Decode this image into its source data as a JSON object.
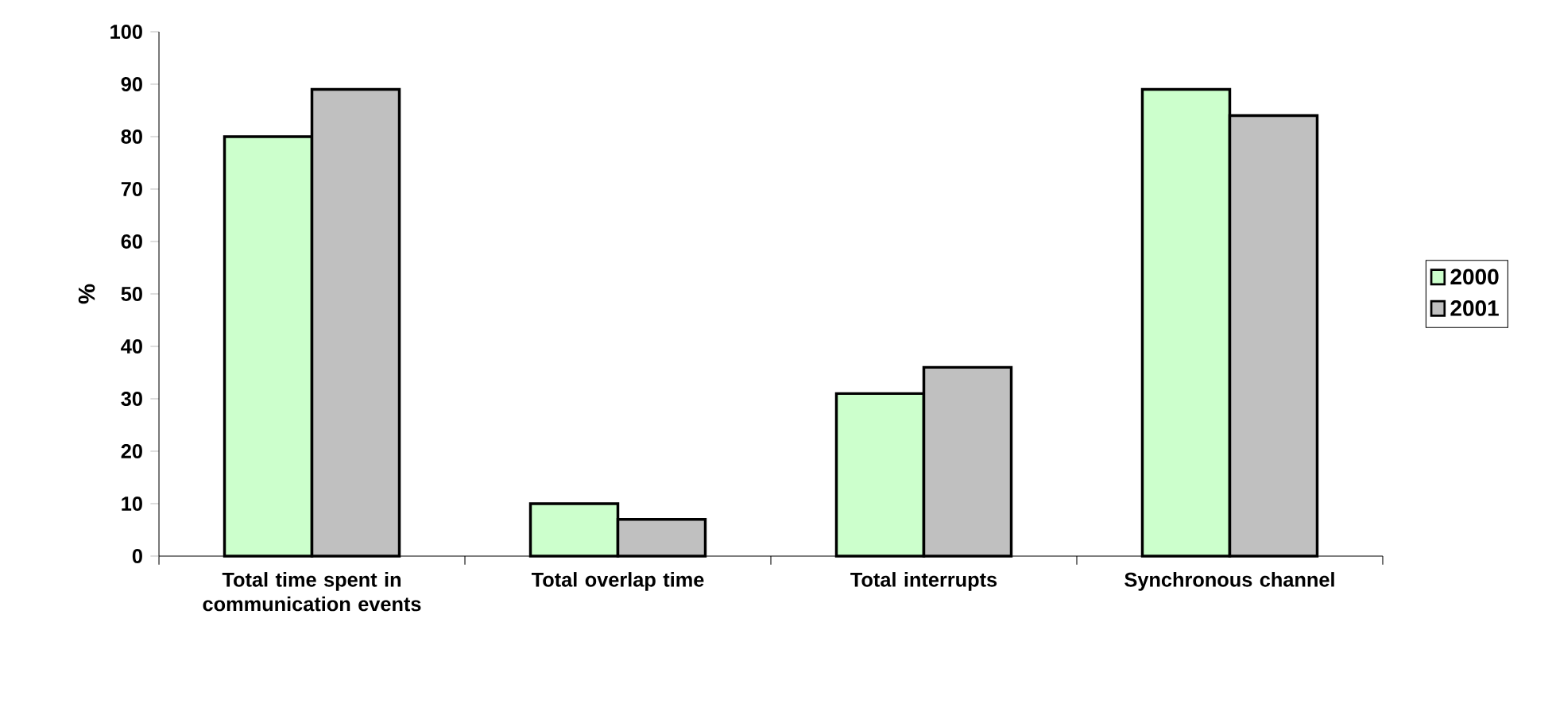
{
  "chart_data": {
    "type": "bar",
    "ylabel": "%",
    "categories": [
      "Total time spent in communication events",
      "Total overlap time",
      "Total interrupts",
      "Synchronous channel"
    ],
    "series": [
      {
        "name": "2000",
        "color": "#ccffcc",
        "values": [
          80,
          10,
          31,
          89
        ]
      },
      {
        "name": "2001",
        "color": "#c0c0c0",
        "values": [
          89,
          7,
          36,
          84
        ]
      }
    ],
    "ylim": [
      0,
      100
    ],
    "yticks": [
      0,
      10,
      20,
      30,
      40,
      50,
      60,
      70,
      80,
      90,
      100
    ],
    "legend": "right",
    "grid": false
  }
}
